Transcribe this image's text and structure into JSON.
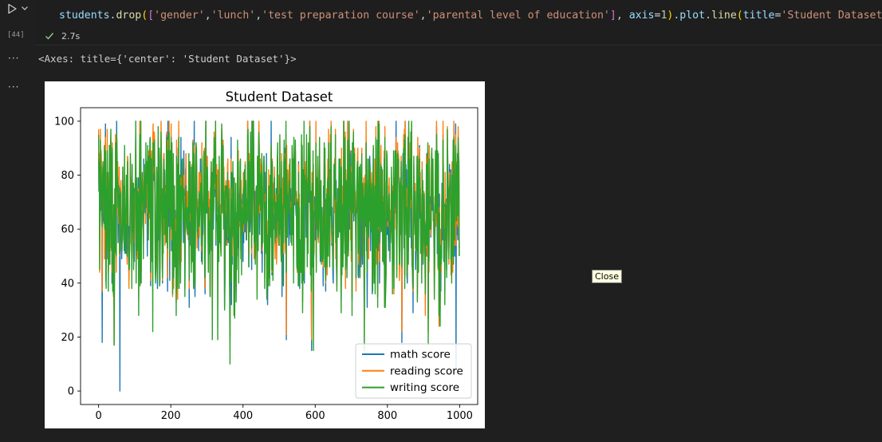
{
  "cell": {
    "execution_count": "[44]",
    "elapsed": "2.7s",
    "code": {
      "var": "students",
      "method1": "drop",
      "args": [
        "'gender'",
        "'lunch'",
        "'test preparation course'",
        "'parental level of education'"
      ],
      "axis_kw": "axis",
      "axis_val": "1",
      "plot": "plot",
      "method2": "line",
      "title_kw": "title",
      "title_val": "'Student Dataset'"
    },
    "output_text": "<Axes: title={'center': 'Student Dataset'}>",
    "output_ellipsis": "···"
  },
  "tooltip": {
    "text": "Close"
  },
  "colors": {
    "math": "#1f77b4",
    "reading": "#ff7f0e",
    "writing": "#2ca02c",
    "check": "#89d185"
  },
  "icons": {
    "run": "play-icon",
    "chevron": "chevron-down-icon",
    "check": "check-icon"
  },
  "chart_data": {
    "type": "line",
    "title": "Student Dataset",
    "xlabel": "",
    "ylabel": "",
    "xlim": [
      -50,
      1050
    ],
    "ylim": [
      -5,
      105
    ],
    "xticks": [
      0,
      200,
      400,
      600,
      800,
      1000
    ],
    "yticks": [
      0,
      20,
      40,
      60,
      80,
      100
    ],
    "legend": "lower-right",
    "series": [
      {
        "name": "math score",
        "color": "#1f77b4"
      },
      {
        "name": "reading score",
        "color": "#ff7f0e"
      },
      {
        "name": "writing score",
        "color": "#2ca02c"
      }
    ],
    "x_range": [
      0,
      999
    ],
    "observed": {
      "math_min": {
        "x": 59,
        "y": 0
      },
      "math_low_points": [
        [
          10,
          18
        ],
        [
          520,
          19
        ],
        [
          590,
          15
        ],
        [
          840,
          18
        ],
        [
          990,
          8
        ]
      ],
      "writing_low_points": [
        [
          330,
          19
        ],
        [
          595,
          15
        ],
        [
          150,
          22
        ]
      ],
      "max": 100,
      "typical_range": [
        40,
        95
      ]
    }
  }
}
